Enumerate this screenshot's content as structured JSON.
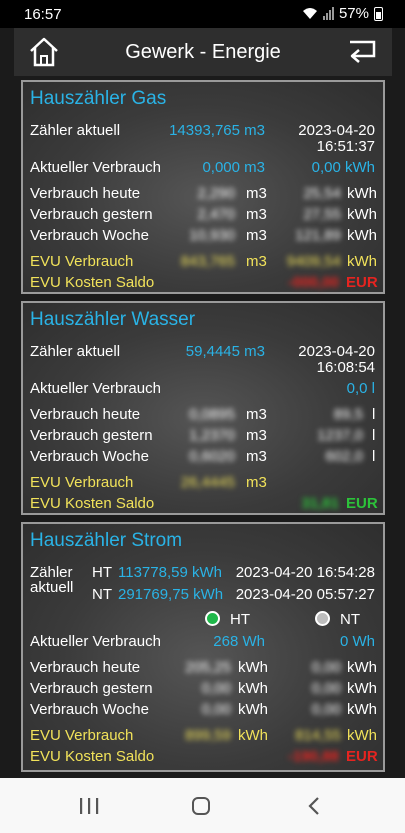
{
  "status": {
    "time": "16:57",
    "battery": "57%"
  },
  "header": {
    "title": "Gewerk - Energie"
  },
  "gas": {
    "title": "Hauszähler Gas",
    "zaehler_label": "Zähler aktuell",
    "zaehler_value": "14393,765 m3",
    "zaehler_date": "2023-04-20",
    "zaehler_time": "16:51:37",
    "aktuell_label": "Aktueller Verbrauch",
    "aktuell_m3": "0,000 m3",
    "aktuell_kwh": "0,00 kWh",
    "heute_label": "Verbrauch heute",
    "heute_m3": "2,290",
    "heute_kwh": "25,54",
    "gestern_label": "Verbrauch gestern",
    "gestern_m3": "2,470",
    "gestern_kwh": "27,55",
    "woche_label": "Verbrauch Woche",
    "woche_m3": "10,930",
    "woche_kwh": "121,89",
    "evu_label": "EVU Verbrauch",
    "evu_m3": "843,765",
    "evu_kwh": "9409,54",
    "kosten_label": "EVU Kosten Saldo",
    "kosten_value": "-000,00",
    "unit_m3": "m3",
    "unit_kwh": "kWh",
    "unit_eur": "EUR"
  },
  "wasser": {
    "title": "Hauszähler Wasser",
    "zaehler_label": "Zähler aktuell",
    "zaehler_value": "59,4445 m3",
    "zaehler_date": "2023-04-20",
    "zaehler_time": "16:08:54",
    "aktuell_label": "Aktueller Verbrauch",
    "aktuell_l": "0,0 l",
    "heute_label": "Verbrauch heute",
    "heute_m3": "0,0895",
    "heute_l": "89,5",
    "gestern_label": "Verbrauch gestern",
    "gestern_m3": "1,2370",
    "gestern_l": "1237,0",
    "woche_label": "Verbrauch Woche",
    "woche_m3": "0,6020",
    "woche_l": "602,0",
    "evu_label": "EVU Verbrauch",
    "evu_m3": "26,4445",
    "kosten_label": "EVU Kosten Saldo",
    "kosten_value": "31,81",
    "unit_m3": "m3",
    "unit_l": "l",
    "unit_eur": "EUR"
  },
  "strom": {
    "title": "Hauszähler Strom",
    "zaehler_label_1": "Zähler",
    "zaehler_label_2": "aktuell",
    "ht_label": "HT",
    "ht_value": "113778,59 kWh",
    "ht_datetime": "2023-04-20 16:54:28",
    "nt_label": "NT",
    "nt_value": "291769,75 kWh",
    "nt_datetime": "2023-04-20 05:57:27",
    "radio_ht": "HT",
    "radio_nt": "NT",
    "aktuell_label": "Aktueller Verbrauch",
    "aktuell_ht": "268 Wh",
    "aktuell_nt": "0 Wh",
    "heute_label": "Verbrauch heute",
    "heute_ht": "205,25",
    "heute_nt": "0,00",
    "gestern_label": "Verbrauch gestern",
    "gestern_ht": "0,00",
    "gestern_nt": "0,00",
    "woche_label": "Verbrauch Woche",
    "woche_ht": "0,00",
    "woche_nt": "0,00",
    "evu_label": "EVU Verbrauch",
    "evu_ht": "899,59",
    "evu_nt": "814,55",
    "kosten_label": "EVU Kosten Saldo",
    "kosten_value": "-190,88",
    "unit_kwh": "kWh",
    "unit_eur": "EUR"
  },
  "colors": {
    "accent_blue": "#2ab3e6",
    "evu_yellow": "#f1e25a",
    "negative_red": "#e52420",
    "positive_green": "#2cc23a"
  }
}
